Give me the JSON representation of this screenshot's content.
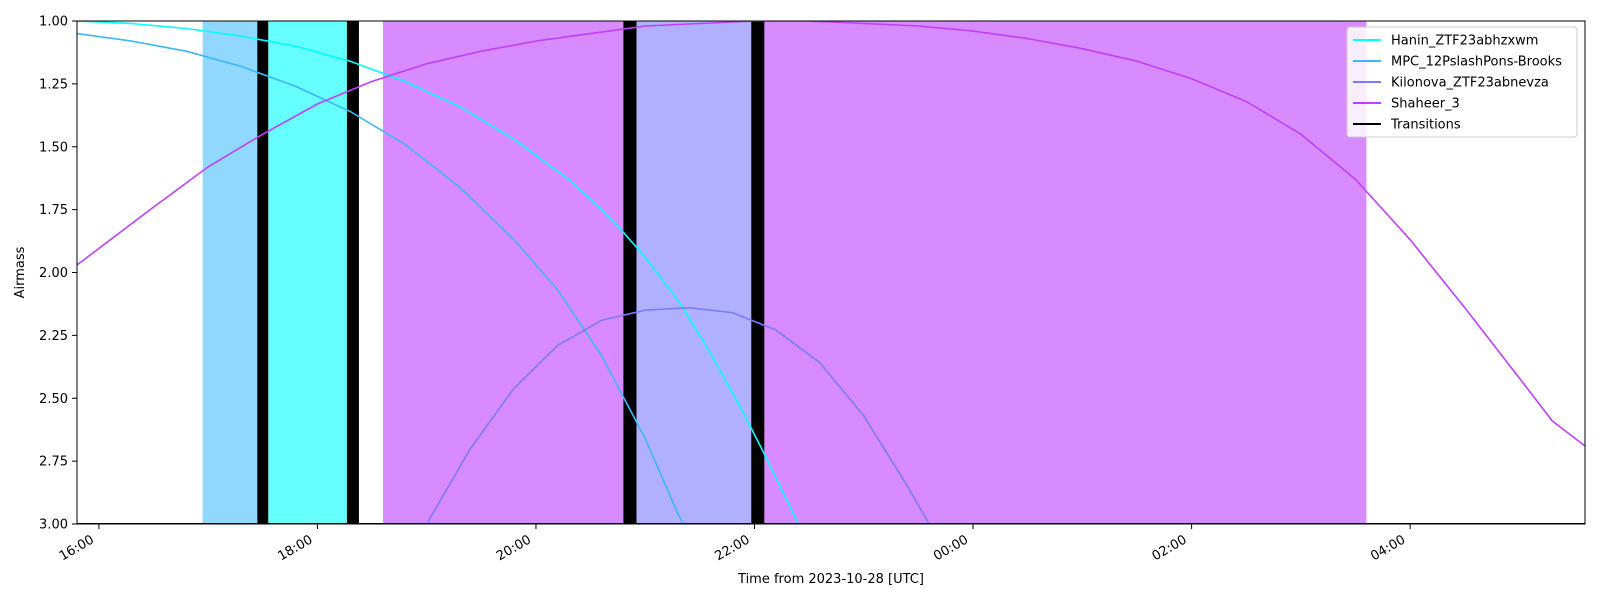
{
  "chart_data": {
    "type": "line",
    "xlabel": "Time from 2023-10-28 [UTC]",
    "ylabel": "Airmass",
    "x_range_hours": [
      15.8,
      29.6
    ],
    "ylim": [
      3.0,
      1.0
    ],
    "y_inverted": true,
    "x_ticks": [
      {
        "hour": 16,
        "label": "16:00"
      },
      {
        "hour": 18,
        "label": "18:00"
      },
      {
        "hour": 20,
        "label": "20:00"
      },
      {
        "hour": 22,
        "label": "22:00"
      },
      {
        "hour": 24,
        "label": "00:00"
      },
      {
        "hour": 26,
        "label": "02:00"
      },
      {
        "hour": 28,
        "label": "04:00"
      }
    ],
    "y_ticks": [
      {
        "value": 1.0,
        "label": "1.00"
      },
      {
        "value": 1.25,
        "label": "1.25"
      },
      {
        "value": 1.5,
        "label": "1.50"
      },
      {
        "value": 1.75,
        "label": "1.75"
      },
      {
        "value": 2.0,
        "label": "2.00"
      },
      {
        "value": 2.25,
        "label": "2.25"
      },
      {
        "value": 2.5,
        "label": "2.50"
      },
      {
        "value": 2.75,
        "label": "2.75"
      },
      {
        "value": 3.0,
        "label": "3.00"
      }
    ],
    "series": [
      {
        "name": "Hanin_ZTF23abhzxwm",
        "color": "#00ffff",
        "points": [
          [
            15.8,
            1.0
          ],
          [
            16.3,
            1.01
          ],
          [
            16.8,
            1.03
          ],
          [
            17.3,
            1.06
          ],
          [
            17.8,
            1.1
          ],
          [
            18.3,
            1.16
          ],
          [
            18.8,
            1.24
          ],
          [
            19.3,
            1.34
          ],
          [
            19.8,
            1.47
          ],
          [
            20.3,
            1.63
          ],
          [
            20.6,
            1.75
          ],
          [
            20.8,
            1.84
          ],
          [
            21.0,
            1.94
          ],
          [
            21.3,
            2.11
          ],
          [
            21.5,
            2.25
          ],
          [
            21.7,
            2.4
          ],
          [
            21.9,
            2.56
          ],
          [
            22.1,
            2.73
          ],
          [
            22.3,
            2.91
          ],
          [
            22.4,
            3.0
          ]
        ]
      },
      {
        "name": "MPC_12PslashPons-Brooks",
        "color": "#3eb6ff",
        "points": [
          [
            15.8,
            1.05
          ],
          [
            16.3,
            1.08
          ],
          [
            16.8,
            1.12
          ],
          [
            17.3,
            1.18
          ],
          [
            17.8,
            1.26
          ],
          [
            18.3,
            1.36
          ],
          [
            18.8,
            1.49
          ],
          [
            19.3,
            1.66
          ],
          [
            19.8,
            1.87
          ],
          [
            20.2,
            2.07
          ],
          [
            20.6,
            2.33
          ],
          [
            21.0,
            2.66
          ],
          [
            21.3,
            2.96
          ],
          [
            21.35,
            3.0
          ]
        ]
      },
      {
        "name": "Kilonova_ZTF23abnevza",
        "color": "#7b7bff",
        "points": [
          [
            19.0,
            3.0
          ],
          [
            19.4,
            2.7
          ],
          [
            19.8,
            2.46
          ],
          [
            20.2,
            2.29
          ],
          [
            20.6,
            2.19
          ],
          [
            21.0,
            2.15
          ],
          [
            21.4,
            2.14
          ],
          [
            21.8,
            2.16
          ],
          [
            22.2,
            2.23
          ],
          [
            22.6,
            2.36
          ],
          [
            23.0,
            2.57
          ],
          [
            23.4,
            2.85
          ],
          [
            23.6,
            3.0
          ]
        ]
      },
      {
        "name": "Shaheer_3",
        "color": "#bf40ff",
        "points": [
          [
            15.8,
            1.97
          ],
          [
            16.5,
            1.74
          ],
          [
            17.0,
            1.58
          ],
          [
            17.5,
            1.45
          ],
          [
            18.0,
            1.33
          ],
          [
            18.5,
            1.24
          ],
          [
            19.0,
            1.17
          ],
          [
            19.5,
            1.12
          ],
          [
            20.0,
            1.08
          ],
          [
            20.5,
            1.05
          ],
          [
            21.0,
            1.02
          ],
          [
            21.5,
            1.01
          ],
          [
            22.0,
            1.0
          ],
          [
            22.5,
            1.0
          ],
          [
            23.0,
            1.01
          ],
          [
            23.5,
            1.02
          ],
          [
            24.0,
            1.04
          ],
          [
            24.5,
            1.07
          ],
          [
            25.0,
            1.11
          ],
          [
            25.5,
            1.16
          ],
          [
            26.0,
            1.23
          ],
          [
            26.5,
            1.32
          ],
          [
            27.0,
            1.45
          ],
          [
            27.5,
            1.63
          ],
          [
            28.0,
            1.87
          ],
          [
            28.5,
            2.14
          ],
          [
            29.0,
            2.42
          ],
          [
            29.3,
            2.59
          ],
          [
            29.6,
            2.69
          ]
        ]
      },
      {
        "name": "Transitions",
        "color": "#000000",
        "points": []
      }
    ],
    "bands": [
      {
        "start": 16.95,
        "end": 17.45,
        "color": "#90d8ff"
      },
      {
        "start": 17.55,
        "end": 18.27,
        "color": "#66ffff"
      },
      {
        "start": 18.6,
        "end": 20.8,
        "color": "#d88aff"
      },
      {
        "start": 20.92,
        "end": 21.97,
        "color": "#b0b0ff"
      },
      {
        "start": 22.09,
        "end": 27.6,
        "color": "#d88aff"
      }
    ],
    "transitions": [
      {
        "start": 17.45,
        "end": 17.55
      },
      {
        "start": 18.27,
        "end": 18.38
      },
      {
        "start": 20.8,
        "end": 20.92
      },
      {
        "start": 21.97,
        "end": 22.09
      }
    ],
    "legend_position": "top-right"
  }
}
